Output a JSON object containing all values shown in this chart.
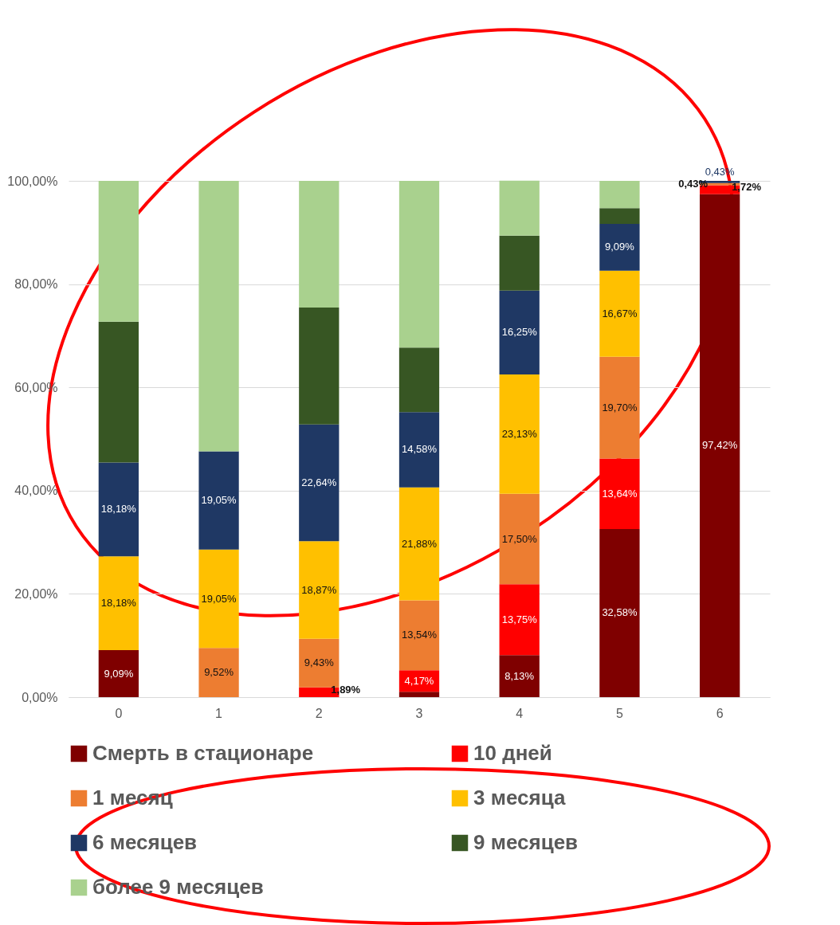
{
  "chart_data": {
    "type": "bar",
    "stacked": true,
    "categories": [
      "0",
      "1",
      "2",
      "3",
      "4",
      "5",
      "6"
    ],
    "ylim": [
      0,
      100
    ],
    "yticks": [
      {
        "value": 0,
        "label": "0,00%"
      },
      {
        "value": 20,
        "label": "20,00%"
      },
      {
        "value": 40,
        "label": "40,00%"
      },
      {
        "value": 60,
        "label": "60,00%"
      },
      {
        "value": 80,
        "label": "80,00%"
      },
      {
        "value": 100,
        "label": "100,00%"
      }
    ],
    "grid": "y",
    "legend": "bottom",
    "series": [
      {
        "name": "Смерть в стационаре",
        "color": "#7f0000",
        "values": [
          9.09,
          0,
          0,
          1.04,
          8.13,
          32.58,
          97.42
        ],
        "value_labels": [
          "9,09%",
          null,
          null,
          null,
          "8,13%",
          "32,58%",
          "97,42%"
        ]
      },
      {
        "name": "10 дней",
        "color": "#ff0000",
        "values": [
          0,
          0,
          1.89,
          4.17,
          13.75,
          13.64,
          1.72
        ],
        "value_labels": [
          null,
          null,
          "1,89%",
          "4,17%",
          "13,75%",
          "13,64%",
          "1,72%"
        ]
      },
      {
        "name": "1 месяц",
        "color": "#ed7d31",
        "values": [
          0,
          9.52,
          9.43,
          13.54,
          17.5,
          19.7,
          0.43
        ],
        "value_labels": [
          null,
          "9,52%",
          "9,43%",
          "13,54%",
          "17,50%",
          "19,70%",
          "0,43%"
        ]
      },
      {
        "name": "3 месяца",
        "color": "#ffc000",
        "values": [
          18.18,
          19.05,
          18.87,
          21.88,
          23.13,
          16.67,
          0
        ],
        "value_labels": [
          "18,18%",
          "19,05%",
          "18,87%",
          "21,88%",
          "23,13%",
          "16,67%",
          null
        ]
      },
      {
        "name": "6 месяцев",
        "color": "#1f3864",
        "values": [
          18.18,
          19.05,
          22.64,
          14.58,
          16.25,
          9.09,
          0.43
        ],
        "value_labels": [
          "18,18%",
          "19,05%",
          "22,64%",
          "14,58%",
          "16,25%",
          "9,09%",
          "0,43%"
        ]
      },
      {
        "name": "9 месяцев",
        "color": "#375623",
        "values": [
          27.27,
          0,
          22.64,
          12.5,
          10.63,
          3.03,
          0
        ],
        "value_labels": [
          null,
          null,
          null,
          null,
          null,
          null,
          null
        ]
      },
      {
        "name": "более 9 месяцев",
        "color": "#a9d18e",
        "values": [
          27.27,
          52.38,
          24.53,
          32.29,
          10.63,
          5.3,
          0
        ],
        "value_labels": [
          null,
          null,
          null,
          null,
          null,
          null,
          null
        ]
      }
    ]
  }
}
